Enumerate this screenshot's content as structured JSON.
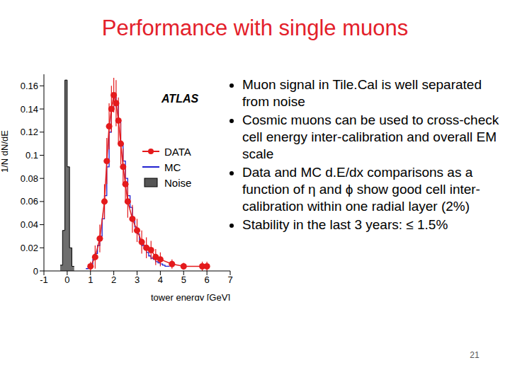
{
  "title": "Performance with single muons",
  "bullets": [
    "Muon signal in Tile.Cal is well separated from noise",
    "Cosmic muons can be used to cross-check cell energy inter-calibration and overall EM scale",
    "Data and MC d.E/dx comparisons as a function of η and ϕ show good cell inter-calibration within one radial layer (2%)",
    "Stability in the last 3 years: ≤ 1.5%"
  ],
  "page_number": 21,
  "chart_data": {
    "type": "histogram",
    "annotation": "ATLAS",
    "xlabel": "tower energy [GeV]",
    "ylabel": "1/N dN/dE",
    "xlim": [
      -1,
      7
    ],
    "xticks": [
      -1,
      0,
      1,
      2,
      3,
      4,
      5,
      6,
      7
    ],
    "ylim": [
      0,
      0.17
    ],
    "yticks": [
      0,
      0.02,
      0.04,
      0.06,
      0.08,
      0.1,
      0.12,
      0.14,
      0.16
    ],
    "series": [
      {
        "name": "DATA",
        "type": "scatter",
        "color": "#e41a1c",
        "marker": "circle",
        "line_style": "solid",
        "x": [
          1.0,
          1.2,
          1.4,
          1.6,
          1.7,
          1.8,
          1.9,
          2.0,
          2.1,
          2.2,
          2.3,
          2.4,
          2.5,
          2.6,
          2.8,
          3.0,
          3.2,
          3.4,
          3.6,
          3.8,
          4.0,
          4.5,
          5.0,
          5.8,
          6.0
        ],
        "values": [
          0.004,
          0.012,
          0.028,
          0.06,
          0.095,
          0.125,
          0.14,
          0.152,
          0.145,
          0.13,
          0.11,
          0.09,
          0.075,
          0.06,
          0.045,
          0.035,
          0.025,
          0.02,
          0.018,
          0.012,
          0.01,
          0.006,
          0.004,
          0.004,
          0.004
        ],
        "errors": [
          0.004,
          0.01,
          0.012,
          0.015,
          0.02,
          0.02,
          0.02,
          0.015,
          0.02,
          0.02,
          0.018,
          0.016,
          0.015,
          0.014,
          0.012,
          0.01,
          0.01,
          0.009,
          0.008,
          0.007,
          0.006,
          0.004,
          0.003,
          0.004,
          0.004
        ]
      },
      {
        "name": "MC",
        "type": "step",
        "color": "#2020d0",
        "line_style": "solid",
        "bins": [
          0.8,
          0.9,
          1.0,
          1.1,
          1.2,
          1.3,
          1.4,
          1.5,
          1.6,
          1.7,
          1.8,
          1.9,
          2.0,
          2.1,
          2.2,
          2.3,
          2.4,
          2.5,
          2.6,
          2.7,
          2.8,
          2.9,
          3.0,
          3.1,
          3.2,
          3.3,
          3.4,
          3.5,
          3.6,
          3.7,
          3.8,
          3.9,
          4.0,
          4.1,
          4.2,
          4.3,
          4.4
        ],
        "values": [
          0.002,
          0.004,
          0.006,
          0.01,
          0.015,
          0.022,
          0.03,
          0.045,
          0.065,
          0.09,
          0.12,
          0.14,
          0.15,
          0.145,
          0.13,
          0.11,
          0.095,
          0.08,
          0.065,
          0.055,
          0.045,
          0.038,
          0.032,
          0.027,
          0.022,
          0.019,
          0.016,
          0.013,
          0.011,
          0.01,
          0.008,
          0.007,
          0.006,
          0.005,
          0.004,
          0.004
        ]
      },
      {
        "name": "Noise",
        "type": "bar",
        "color": "#555555",
        "bins": [
          -0.3,
          -0.2,
          -0.1,
          0.0,
          0.1,
          0.2,
          0.3
        ],
        "values": [
          0.005,
          0.035,
          0.165,
          0.09,
          0.02,
          0.004
        ]
      }
    ]
  }
}
